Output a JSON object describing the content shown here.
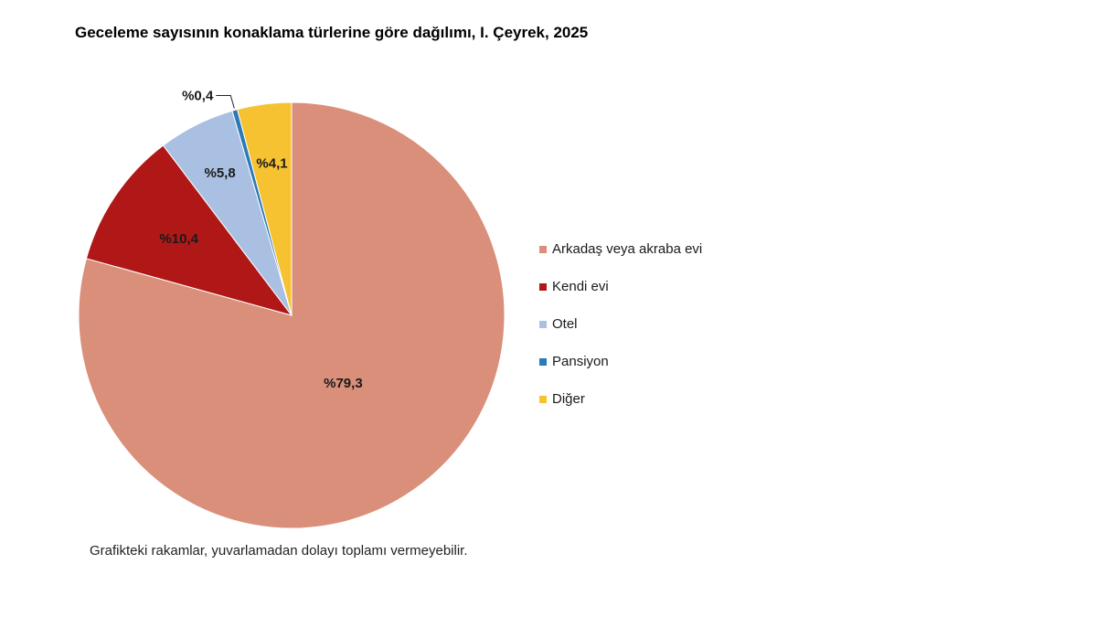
{
  "chart_data": {
    "type": "pie",
    "title": "Geceleme sayısının konaklama türlerine göre dağılımı, I. Çeyrek, 2025",
    "slices": [
      {
        "name": "Arkadaş veya akraba evi",
        "value": 79.3,
        "label": "%79,3",
        "color": "#d98f79"
      },
      {
        "name": "Kendi evi",
        "value": 10.4,
        "label": "%10,4",
        "color": "#b01818"
      },
      {
        "name": "Otel",
        "value": 5.8,
        "label": "%5,8",
        "color": "#a9c0e2"
      },
      {
        "name": "Pansiyon",
        "value": 0.4,
        "label": "%0,4",
        "color": "#2b7ab8"
      },
      {
        "name": "Diğer",
        "value": 4.1,
        "label": "%4,1",
        "color": "#f6c232"
      }
    ],
    "start_angle": "12 o'clock",
    "direction": "clockwise",
    "legend_position": "right"
  },
  "footnote": "Grafikteki rakamlar, yuvarlamadan dolayı toplamı vermeyebilir."
}
